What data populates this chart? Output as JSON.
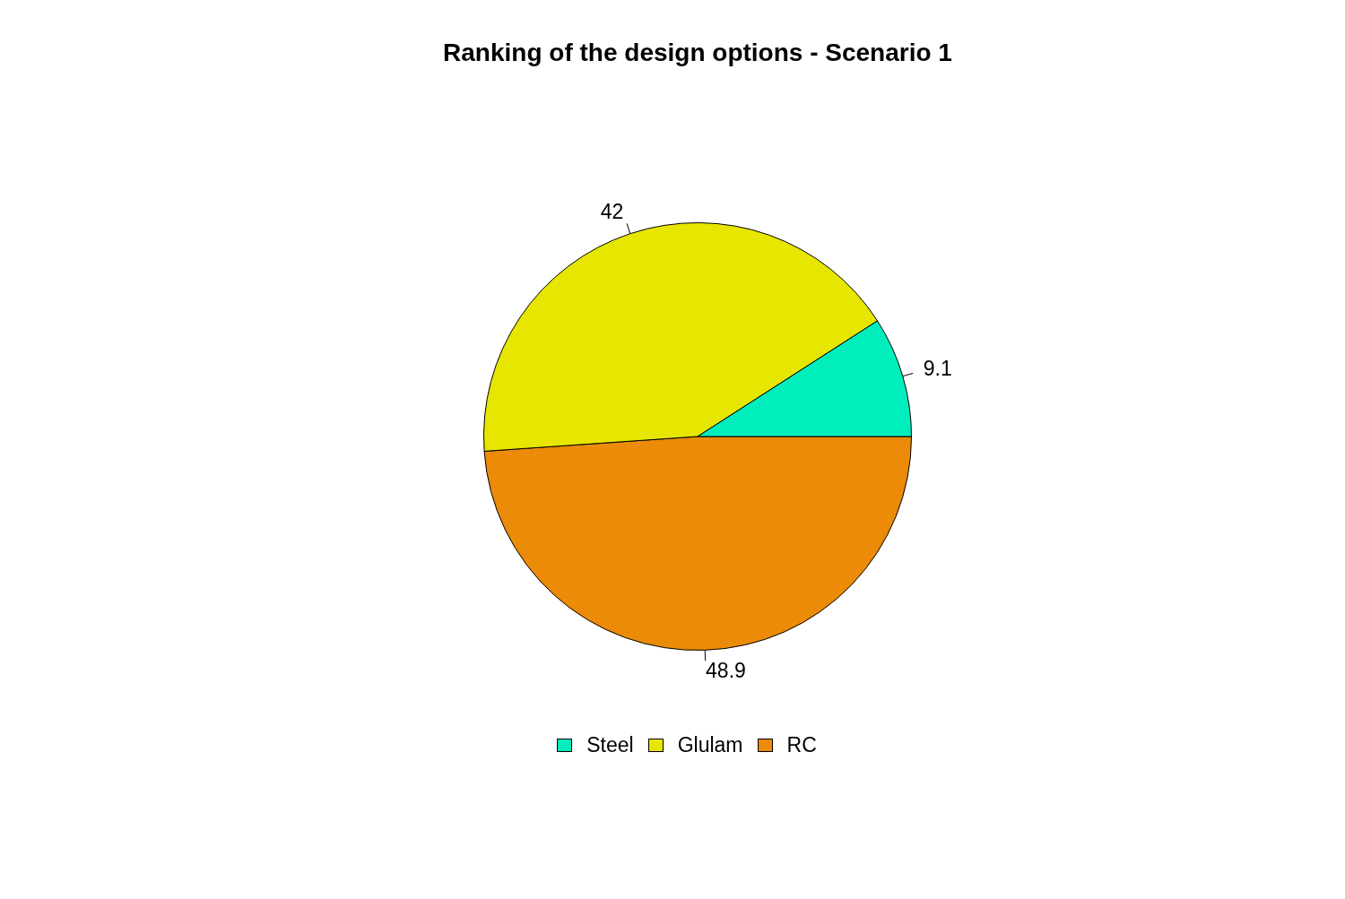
{
  "chart_data": {
    "type": "pie",
    "title": "Ranking of the design options - Scenario 1",
    "categories": [
      "Steel",
      "Glulam",
      "RC"
    ],
    "values": [
      9.1,
      42,
      48.9
    ],
    "colors": [
      "#00eebb",
      "#e6e600",
      "#eb8b08"
    ],
    "data_labels": true,
    "legend": "bottom"
  }
}
